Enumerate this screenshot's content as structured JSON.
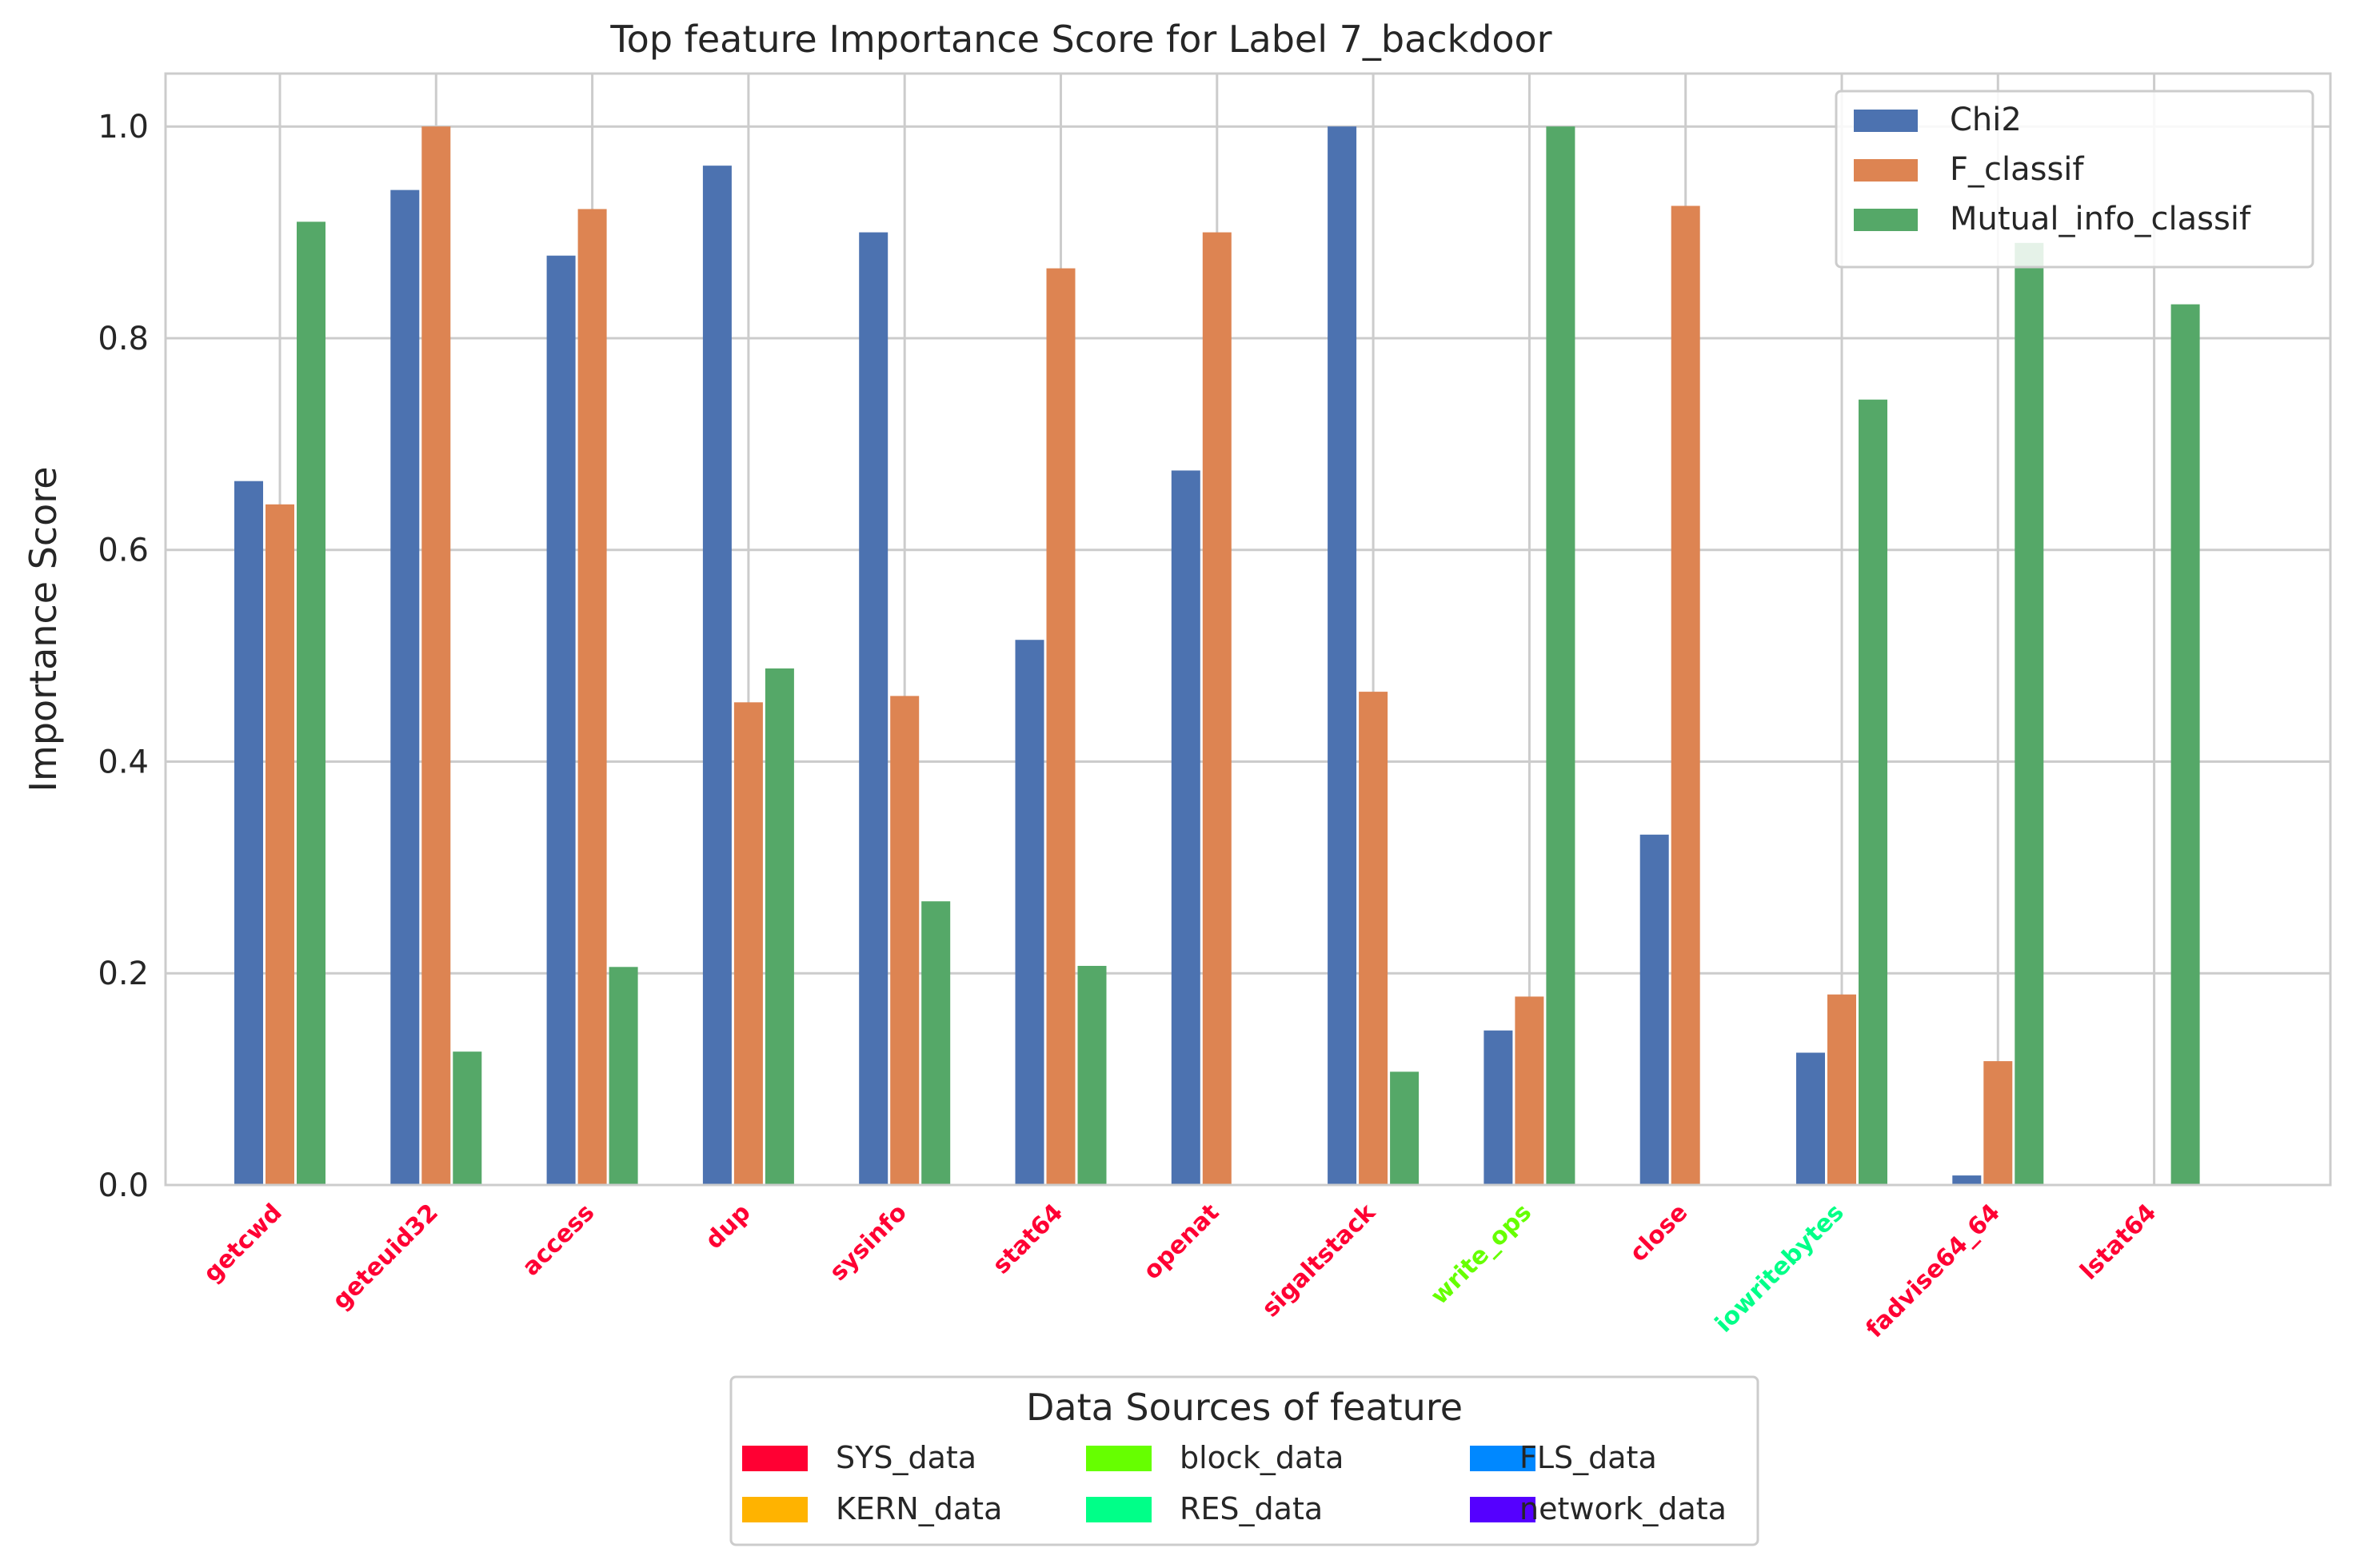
{
  "chart_data": {
    "type": "bar",
    "title": "Top feature Importance Score for Label 7_backdoor",
    "xlabel": "",
    "ylabel": "Importance Score",
    "ylim": [
      0,
      1.05
    ],
    "yticks": [
      "0.0",
      "0.2",
      "0.4",
      "0.6",
      "0.8",
      "1.0"
    ],
    "grid": true,
    "legend_position": "top-right",
    "categories": [
      "getcwd",
      "geteuid32",
      "access",
      "dup",
      "sysinfo",
      "stat64",
      "openat",
      "sigaltstack",
      "write_ops",
      "close",
      "iowritebytes",
      "fadvise64_64",
      "lstat64"
    ],
    "category_sources": [
      "SYS_data",
      "SYS_data",
      "SYS_data",
      "SYS_data",
      "SYS_data",
      "SYS_data",
      "SYS_data",
      "SYS_data",
      "block_data",
      "SYS_data",
      "RES_data",
      "SYS_data",
      "SYS_data"
    ],
    "series": [
      {
        "name": "Chi2",
        "color": "#4c72b0",
        "values": [
          0.665,
          0.94,
          0.878,
          0.963,
          0.9,
          0.515,
          0.675,
          1.0,
          0.146,
          0.331,
          0.125,
          0.009,
          0.0
        ]
      },
      {
        "name": "F_classif",
        "color": "#dd8452",
        "values": [
          0.643,
          1.0,
          0.922,
          0.456,
          0.462,
          0.866,
          0.9,
          0.466,
          0.178,
          0.925,
          0.18,
          0.117,
          0.0
        ]
      },
      {
        "name": "Mutual_info_classif",
        "color": "#55a868",
        "values": [
          0.91,
          0.126,
          0.206,
          0.488,
          0.268,
          0.207,
          0.0,
          0.107,
          1.0,
          0.0,
          0.742,
          0.89,
          0.832
        ]
      }
    ],
    "source_legend": {
      "title": "Data Sources of feature",
      "items": [
        {
          "name": "SYS_data",
          "color": "#ff0033"
        },
        {
          "name": "KERN_data",
          "color": "#ffb300"
        },
        {
          "name": "block_data",
          "color": "#66ff00"
        },
        {
          "name": "RES_data",
          "color": "#00ff88"
        },
        {
          "name": "FLS_data",
          "color": "#0088ff"
        },
        {
          "name": "network_data",
          "color": "#5500ff"
        }
      ]
    }
  }
}
